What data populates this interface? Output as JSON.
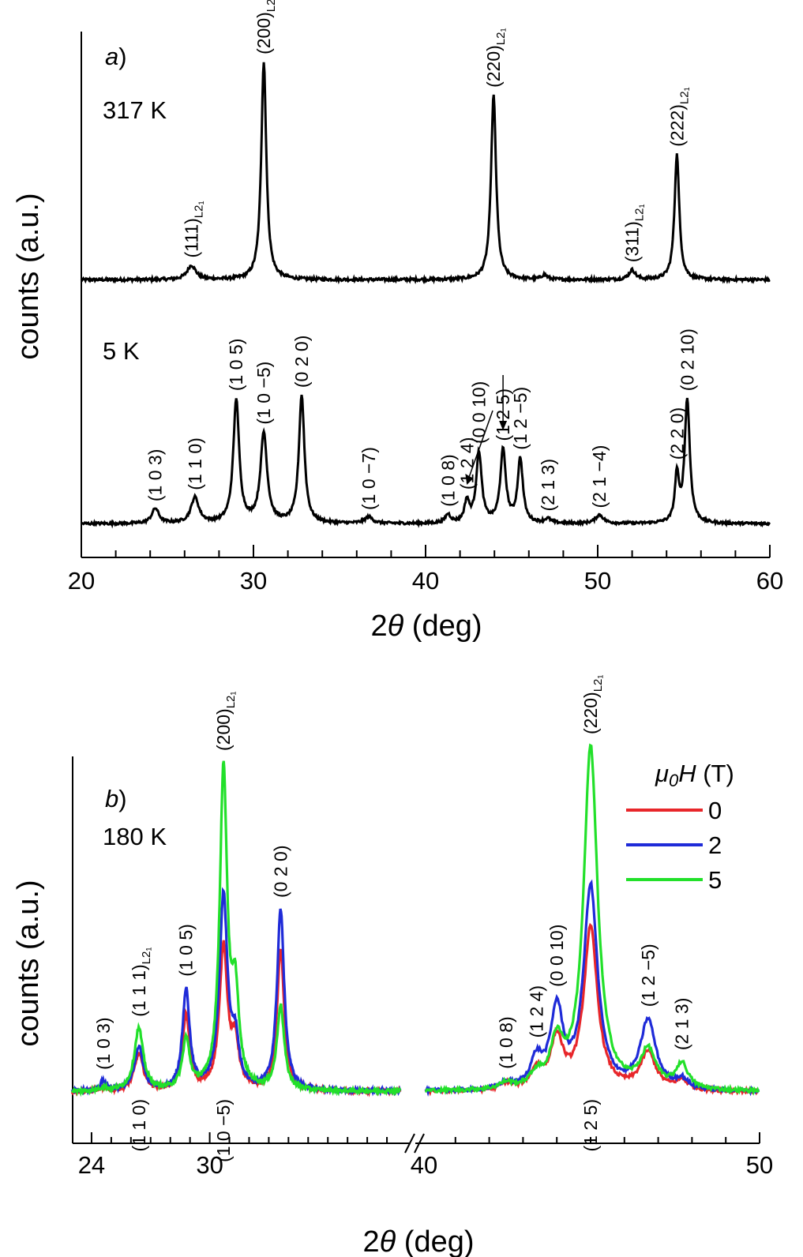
{
  "colors": {
    "axis": "#000000",
    "panel_a_line": "#000000",
    "field_0": "#e8262a",
    "field_2": "#1f2bd8",
    "field_5": "#22e02a"
  },
  "chart_data": [
    {
      "type": "line",
      "panel": "a)",
      "xlabel": "2θ (deg)",
      "ylabel": "counts (a.u.)",
      "xlim": [
        20,
        60
      ],
      "xticks": [
        20,
        30,
        40,
        50,
        60
      ],
      "y_axis": "offset traces, arbitrary units",
      "series": [
        {
          "name": "317 K",
          "offset": 1.0,
          "background": 0.04,
          "peaks": [
            {
              "x": 26.4,
              "h": 0.06,
              "w": 0.55,
              "label": "(111)",
              "sub": "L2₁"
            },
            {
              "x": 30.6,
              "h": 0.92,
              "w": 0.32,
              "label": "(200)",
              "sub": "L2₁"
            },
            {
              "x": 43.95,
              "h": 0.78,
              "w": 0.32,
              "label": "(220)",
              "sub": "L2₁"
            },
            {
              "x": 46.9,
              "h": 0.02,
              "w": 0.35,
              "label": "",
              "sub": ""
            },
            {
              "x": 52.0,
              "h": 0.04,
              "w": 0.4,
              "label": "(311)",
              "sub": "L2₁"
            },
            {
              "x": 54.6,
              "h": 0.53,
              "w": 0.3,
              "label": "(222)",
              "sub": "L2₁"
            }
          ]
        },
        {
          "name": "5 K",
          "offset": 0.0,
          "background": 0.03,
          "peaks": [
            {
              "x": 24.3,
              "h": 0.07,
              "w": 0.45,
              "label": "(1 0 3)"
            },
            {
              "x": 26.6,
              "h": 0.12,
              "w": 0.5,
              "label": "(1 1 0)"
            },
            {
              "x": 29.0,
              "h": 0.58,
              "w": 0.37,
              "label": "(1 0 5)"
            },
            {
              "x": 30.6,
              "h": 0.42,
              "w": 0.42,
              "label": "(1 0 −5)"
            },
            {
              "x": 32.8,
              "h": 0.6,
              "w": 0.35,
              "label": "(0 2 0)"
            },
            {
              "x": 36.7,
              "h": 0.03,
              "w": 0.5,
              "label": "(1 0 −7)"
            },
            {
              "x": 41.3,
              "h": 0.04,
              "w": 0.35,
              "label": "(1 0 8)"
            },
            {
              "x": 42.4,
              "h": 0.1,
              "w": 0.3,
              "label": "(1 2 4)"
            },
            {
              "x": 43.1,
              "h": 0.33,
              "w": 0.35,
              "label": "(0 0 10)"
            },
            {
              "x": 44.5,
              "h": 0.34,
              "w": 0.35,
              "label": "(1 2 5)"
            },
            {
              "x": 45.5,
              "h": 0.3,
              "w": 0.33,
              "label": "(1 2 −5)"
            },
            {
              "x": 47.1,
              "h": 0.02,
              "w": 0.4,
              "label": "(2 1 3)"
            },
            {
              "x": 50.1,
              "h": 0.04,
              "w": 0.5,
              "label": "(2 1 −4)"
            },
            {
              "x": 54.6,
              "h": 0.22,
              "w": 0.25,
              "label": "(2 2 0)"
            },
            {
              "x": 55.2,
              "h": 0.58,
              "w": 0.33,
              "label": "(0 2 10)"
            }
          ]
        }
      ],
      "temperature_labels": [
        "317 K",
        "5 K"
      ]
    },
    {
      "type": "line",
      "panel": "b)",
      "temperature": "180 K",
      "xlabel": "2θ (deg)",
      "ylabel": "counts (a.u.)",
      "x_segments": [
        [
          23,
          40
        ],
        [
          40,
          50
        ]
      ],
      "xticks": [
        24,
        30,
        40,
        50
      ],
      "axis_break": true,
      "legend_title": "μ0H (T)",
      "series": [
        {
          "name": "0",
          "peaks": [
            [
              24.6,
              0.01,
              0.4
            ],
            [
              26.4,
              0.12,
              0.5
            ],
            [
              28.8,
              0.24,
              0.4
            ],
            [
              30.7,
              0.46,
              0.45
            ],
            [
              31.3,
              0.14,
              0.4
            ],
            [
              33.6,
              0.45,
              0.4
            ],
            [
              42.5,
              0.02,
              0.4
            ],
            [
              43.4,
              0.06,
              0.4
            ],
            [
              44.0,
              0.16,
              0.4
            ],
            [
              45.0,
              0.52,
              0.45
            ],
            [
              46.7,
              0.12,
              0.5
            ],
            [
              47.7,
              0.03,
              0.4
            ]
          ]
        },
        {
          "name": "2",
          "peaks": [
            [
              24.6,
              0.03,
              0.4
            ],
            [
              26.4,
              0.14,
              0.5
            ],
            [
              28.8,
              0.32,
              0.4
            ],
            [
              30.7,
              0.62,
              0.45
            ],
            [
              31.3,
              0.14,
              0.4
            ],
            [
              33.6,
              0.58,
              0.4
            ],
            [
              42.5,
              0.02,
              0.4
            ],
            [
              43.4,
              0.09,
              0.4
            ],
            [
              44.0,
              0.25,
              0.4
            ],
            [
              45.0,
              0.65,
              0.45
            ],
            [
              46.7,
              0.22,
              0.5
            ],
            [
              47.7,
              0.03,
              0.4
            ]
          ]
        },
        {
          "name": "5",
          "peaks": [
            [
              24.6,
              0.01,
              0.4
            ],
            [
              26.4,
              0.2,
              0.5
            ],
            [
              28.8,
              0.16,
              0.4
            ],
            [
              30.7,
              1.02,
              0.42
            ],
            [
              31.3,
              0.28,
              0.4
            ],
            [
              33.6,
              0.27,
              0.4
            ],
            [
              42.5,
              0.02,
              0.4
            ],
            [
              43.4,
              0.04,
              0.4
            ],
            [
              44.0,
              0.14,
              0.4
            ],
            [
              45.0,
              1.1,
              0.45
            ],
            [
              46.7,
              0.12,
              0.5
            ],
            [
              47.7,
              0.08,
              0.4
            ]
          ]
        }
      ],
      "peak_labels": [
        {
          "x": 24.6,
          "label": "(1 0 3)",
          "side": "top",
          "sub": ""
        },
        {
          "x": 26.4,
          "label": "(1 1 1)",
          "side": "top",
          "sub": "L2₁"
        },
        {
          "x": 28.8,
          "label": "(1 0 5)",
          "side": "top",
          "sub": ""
        },
        {
          "x": 30.7,
          "label": "(200)",
          "side": "top",
          "sub": "L2₁"
        },
        {
          "x": 33.6,
          "label": "(0 2 0)",
          "side": "top",
          "sub": ""
        },
        {
          "x": 42.5,
          "label": "(1 0 8)",
          "side": "top",
          "sub": ""
        },
        {
          "x": 43.4,
          "label": "(1 2 4)",
          "side": "top",
          "sub": ""
        },
        {
          "x": 44.0,
          "label": "(0 0 10)",
          "side": "top",
          "sub": ""
        },
        {
          "x": 45.0,
          "label": "(220)",
          "side": "top",
          "sub": "L2₁"
        },
        {
          "x": 46.7,
          "label": "(1 2 −5)",
          "side": "top",
          "sub": ""
        },
        {
          "x": 47.7,
          "label": "(2 1 3)",
          "side": "top",
          "sub": ""
        },
        {
          "x": 26.4,
          "label": "(1 1 0)",
          "side": "bottom",
          "sub": ""
        },
        {
          "x": 30.7,
          "label": "(1 0 −5)",
          "side": "bottom",
          "sub": ""
        },
        {
          "x": 45.0,
          "label": "(1 2 5)",
          "side": "bottom",
          "sub": ""
        }
      ]
    }
  ]
}
